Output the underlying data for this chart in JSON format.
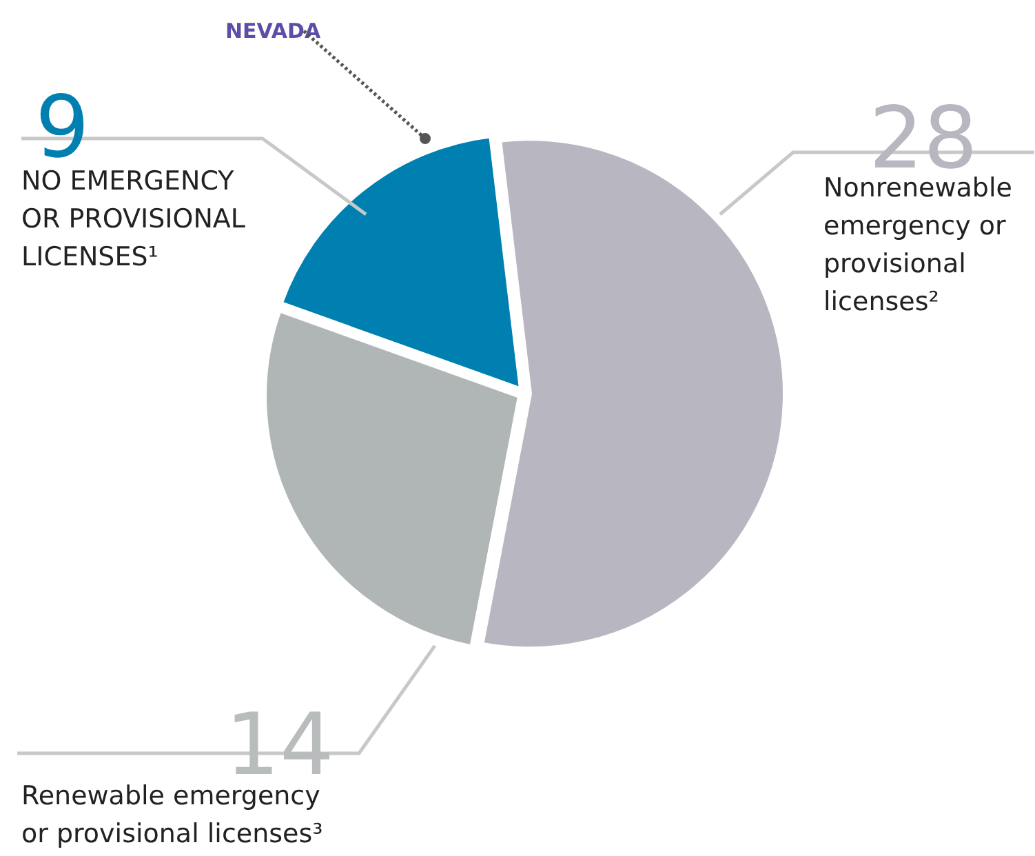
{
  "chart_data": {
    "type": "pie",
    "categories": [
      "NO EMERGENCY\nOR PROVISIONAL\nLICENSES¹",
      "Nonrenewable\nemergency or\nprovisional\nlicenses²",
      "Renewable emergency\nor provisional licenses³"
    ],
    "values": [
      9,
      28,
      14
    ],
    "colors": [
      "#0080b0",
      "#b8b6c0",
      "#b0b5b5"
    ],
    "data_labels": true,
    "annotations": [
      "NEVADA"
    ]
  }
}
